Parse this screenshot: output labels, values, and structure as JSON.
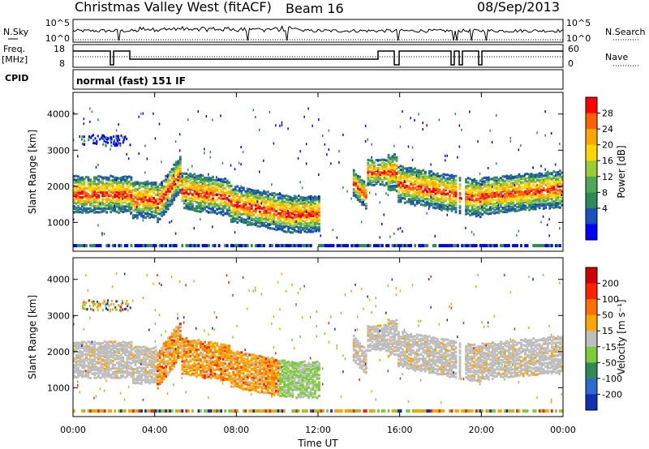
{
  "header": {
    "title": "Christmas Valley West (fitACF)",
    "beam": "Beam 16",
    "date": "08/Sep/2013"
  },
  "top_panels": {
    "nsky_label": "N.Sky",
    "nsky_ticks": [
      "10^5",
      "10^0"
    ],
    "nsearch_label": "N.Search",
    "nsearch_ticks": [
      "10^5",
      "10^0"
    ],
    "freq_label": "Freq.",
    "freq_unit": "[MHz]",
    "freq_ticks": [
      "18",
      "8"
    ],
    "nave_label": "Nave",
    "nave_ticks": [
      "60",
      "0"
    ],
    "cpid_label": "CPID",
    "cpid_value": "normal (fast) 151 IF"
  },
  "chart_data": [
    {
      "type": "heatmap",
      "name": "power-panel",
      "ylabel": "Slant Range [km]",
      "ylim": [
        200,
        4600
      ],
      "yticks": [
        "4000",
        "3000",
        "2000",
        "1000"
      ],
      "colorbar_label": "Power [dB]",
      "colorbar_ticks": [
        "28",
        "24",
        "20",
        "16",
        "12",
        "8",
        "4"
      ],
      "colorbar_colors": [
        "#0000ff",
        "#1c4fbf",
        "#2e8b57",
        "#4fa85a",
        "#9acd32",
        "#ffd700",
        "#ffa500",
        "#ff6000",
        "#ff0000"
      ]
    },
    {
      "type": "heatmap",
      "name": "velocity-panel",
      "ylabel": "Slant Range [km]",
      "xlabel": "Time UT",
      "ylim": [
        200,
        4600
      ],
      "yticks": [
        "4000",
        "3000",
        "2000",
        "1000"
      ],
      "xticks": [
        "00:00",
        "04:00",
        "08:00",
        "12:00",
        "16:00",
        "20:00",
        "00:00"
      ],
      "colorbar_label": "Velocity [m s⁻¹]",
      "colorbar_ticks": [
        "200",
        "100",
        "50",
        "15",
        "-15",
        "-50",
        "-100",
        "-200"
      ],
      "colorbar_colors": [
        "#1030b0",
        "#2c6ad0",
        "#2e8b57",
        "#7ccd3a",
        "#bebebe",
        "#ffa500",
        "#ff7000",
        "#ff2000",
        "#d00000"
      ]
    }
  ]
}
